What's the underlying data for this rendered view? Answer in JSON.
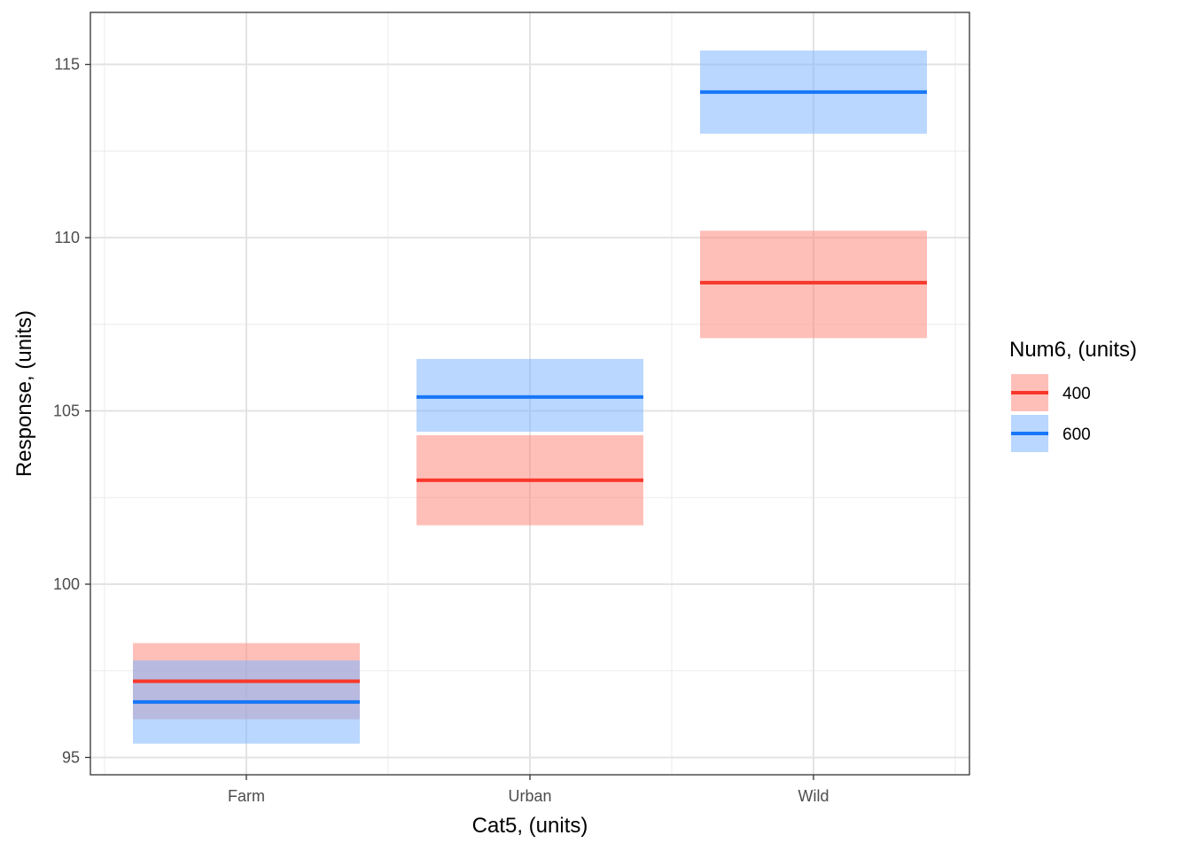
{
  "chart_data": {
    "type": "line",
    "title": "",
    "xlabel": "Cat5, (units)",
    "ylabel": "Response, (units)",
    "categories": [
      "Farm",
      "Urban",
      "Wild"
    ],
    "ylim": [
      94.5,
      116.5
    ],
    "yticks": [
      95,
      100,
      105,
      110,
      115
    ],
    "yticks_labels": [
      "95",
      "100",
      "105",
      "110",
      "115"
    ],
    "grid": true,
    "legend": {
      "title": "Num6, (units)",
      "position": "right"
    },
    "series": [
      {
        "name": "400",
        "color": "#f8372a",
        "band_color": "#ff8a80",
        "values": [
          97.2,
          103.0,
          108.7
        ],
        "lower": [
          96.1,
          101.7,
          107.1
        ],
        "upper": [
          98.3,
          104.3,
          110.2
        ]
      },
      {
        "name": "600",
        "color": "#1877f7",
        "band_color": "#7fb6ff",
        "values": [
          96.6,
          105.4,
          114.2
        ],
        "lower": [
          95.4,
          104.4,
          113.0
        ],
        "upper": [
          97.8,
          106.5,
          115.4
        ]
      }
    ]
  }
}
